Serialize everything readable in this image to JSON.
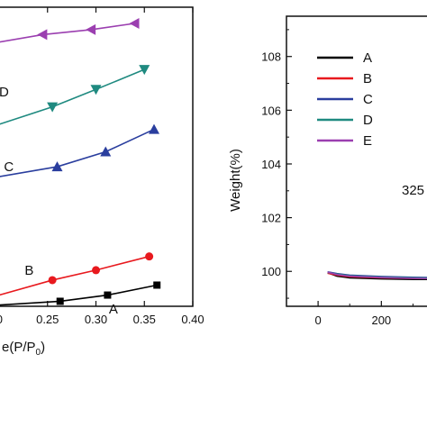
{
  "chart_data": [
    {
      "type": "line",
      "panel": "left",
      "xlabel": "e(P/P",
      "xlabel_sub": "0",
      "xlabel_close": ")",
      "ylabel": "",
      "xlim": [
        0.2,
        0.4
      ],
      "xticks": [
        "0.25",
        "0.30",
        "0.35",
        "0.40"
      ],
      "xtick_values": [
        0.25,
        0.3,
        0.35,
        0.4
      ],
      "xtick_partial": "0",
      "series": [
        {
          "name": "A",
          "color": "#000000",
          "marker": "square",
          "x": [
            0.2,
            0.263,
            0.312,
            0.363
          ],
          "y": [
            0.5,
            2.0,
            4.5,
            8.5
          ]
        },
        {
          "name": "B",
          "color": "#e8191e",
          "marker": "circle",
          "x": [
            0.2,
            0.255,
            0.3,
            0.355
          ],
          "y": [
            4.5,
            10.5,
            14.5,
            20.0
          ]
        },
        {
          "name": "C",
          "color": "#2a3e9e",
          "marker": "triangle-up",
          "x": [
            0.2,
            0.26,
            0.31,
            0.36
          ],
          "y": [
            52.0,
            56.0,
            62.0,
            71.0
          ]
        },
        {
          "name": "D",
          "color": "#1f8a80",
          "marker": "triangle-down",
          "x": [
            0.2,
            0.255,
            0.3,
            0.35
          ],
          "y": [
            73.0,
            80.0,
            87.0,
            95.0
          ]
        },
        {
          "name": "",
          "color": "#9b3fb0",
          "marker": "triangle-left",
          "x": [
            0.2,
            0.245,
            0.295,
            0.34
          ],
          "y": [
            106.0,
            109.0,
            111.0,
            113.5
          ]
        }
      ],
      "annotations": [
        {
          "text": "A",
          "x": 0.318,
          "y": -1.0
        },
        {
          "text": "B",
          "x": 0.231,
          "y": 14.5
        },
        {
          "text": "C",
          "x": 0.21,
          "y": 56.0
        },
        {
          "text": "D",
          "x": 0.205,
          "y": 86.0
        }
      ]
    },
    {
      "type": "line",
      "panel": "right",
      "ylabel": "Weight(%)",
      "xlabel": "",
      "ylim": [
        98.7,
        109.5
      ],
      "yticks": [
        "100",
        "102",
        "104",
        "106",
        "108"
      ],
      "ytick_values": [
        100,
        102,
        104,
        106,
        108
      ],
      "xlim": [
        -100,
        350
      ],
      "xticks": [
        "0",
        "200"
      ],
      "xtick_values": [
        0,
        200
      ],
      "legend": {
        "position": "top-left",
        "entries": [
          "A",
          "B",
          "C",
          "D",
          "E"
        ]
      },
      "annotation": "325",
      "series": [
        {
          "name": "A",
          "color": "#000000",
          "x": [
            30,
            60,
            100,
            200,
            300,
            350
          ],
          "y": [
            99.95,
            99.82,
            99.76,
            99.72,
            99.7,
            99.7
          ]
        },
        {
          "name": "B",
          "color": "#e8191e",
          "x": [
            30,
            60,
            100,
            200,
            300,
            350
          ],
          "y": [
            99.93,
            99.86,
            99.8,
            99.76,
            99.74,
            99.73
          ]
        },
        {
          "name": "C",
          "color": "#2a3e9e",
          "x": [
            30,
            60,
            100,
            200,
            300,
            350
          ],
          "y": [
            99.98,
            99.92,
            99.86,
            99.81,
            99.78,
            99.77
          ]
        },
        {
          "name": "D",
          "color": "#1f8a80",
          "x": [
            30,
            60,
            100,
            200,
            300,
            350
          ],
          "y": [
            99.96,
            99.9,
            99.84,
            99.79,
            99.76,
            99.75
          ]
        },
        {
          "name": "E",
          "color": "#9b3fb0",
          "x": [
            30,
            60,
            100,
            200,
            300,
            350
          ],
          "y": [
            99.97,
            99.88,
            99.82,
            99.77,
            99.74,
            99.73
          ]
        }
      ]
    }
  ]
}
